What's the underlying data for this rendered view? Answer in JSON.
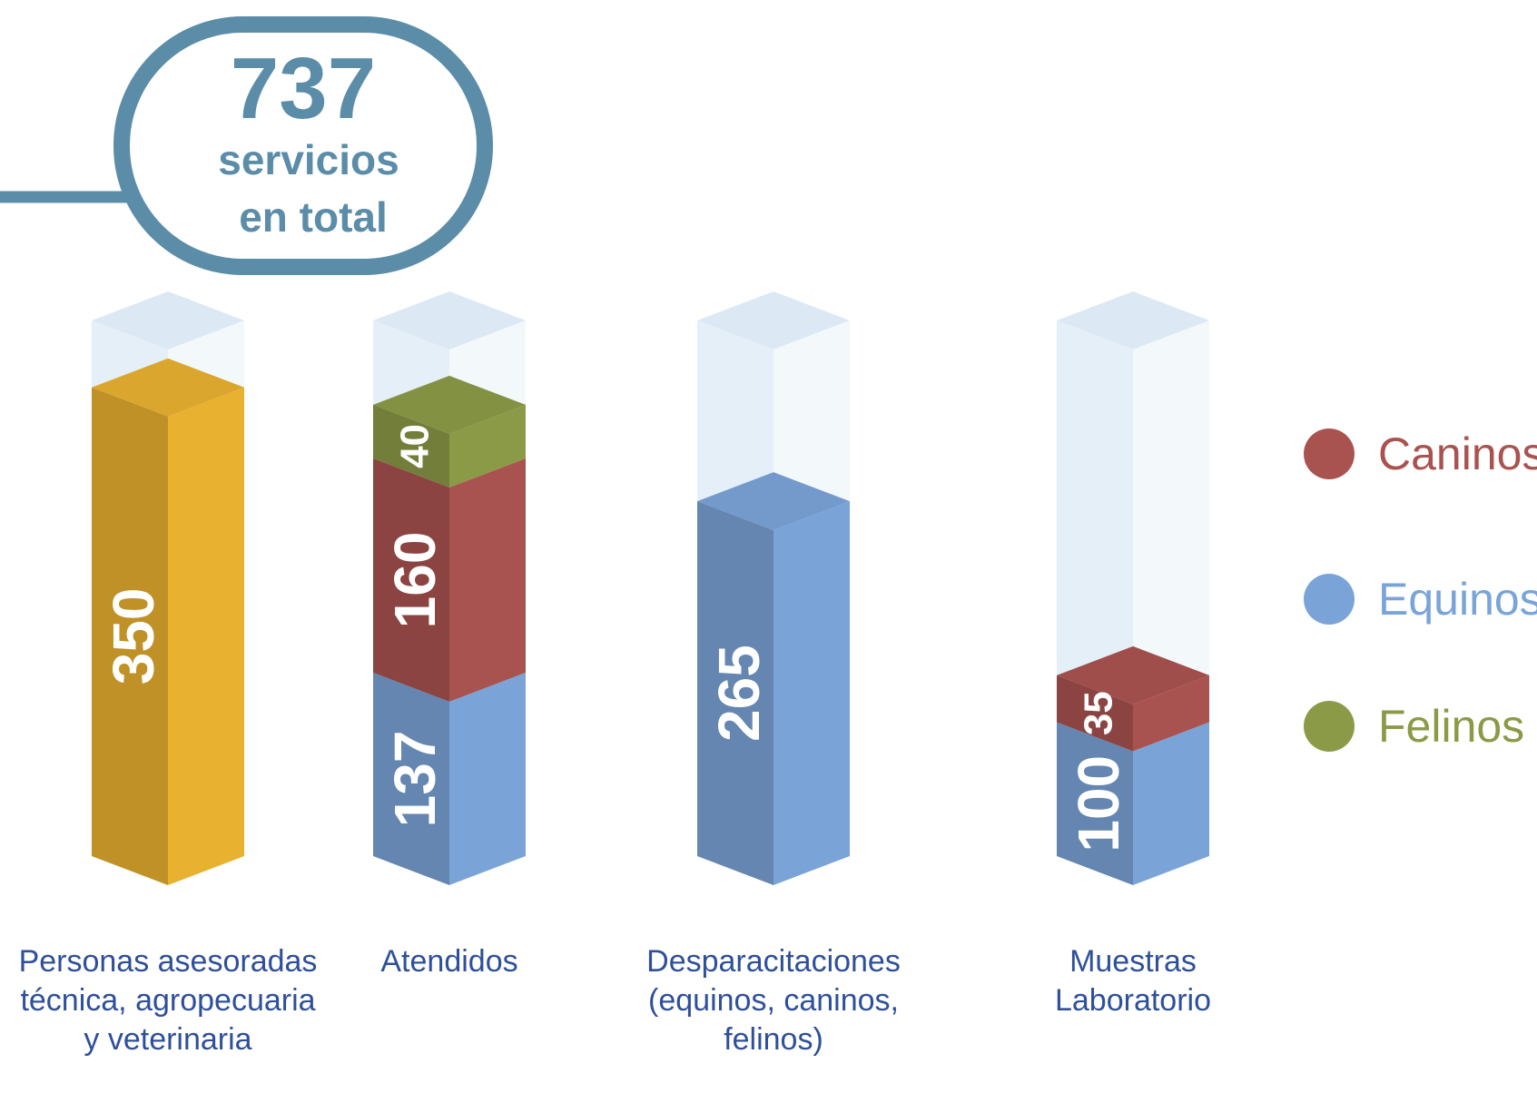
{
  "total_badge": {
    "number": "737",
    "line1": "servicios",
    "line2": "en total",
    "color": "#5b8ca8"
  },
  "colors": {
    "personas": "#e9b130",
    "caninos": "#a95350",
    "equinos": "#7aa4d8",
    "felinos": "#8b9a46",
    "ghost": "#dce9f5",
    "category_text": "#2e4f9a"
  },
  "chart_data": {
    "type": "bar",
    "stacked": true,
    "categories": [
      "Personas asesoradas técnica, agropecuaria y veterinaria",
      "Atendidos",
      "Desparacitaciones (equinos, caninos, felinos)",
      "Muestras Laboratorio"
    ],
    "category_lines": [
      [
        "Personas asesoradas",
        "técnica, agropecuaria",
        "y veterinaria"
      ],
      [
        "Atendidos"
      ],
      [
        "Desparacitaciones",
        "(equinos, caninos,",
        "felinos)"
      ],
      [
        "Muestras",
        "Laboratorio"
      ]
    ],
    "series": [
      {
        "name": "",
        "key": "personas",
        "values": [
          350,
          null,
          null,
          null
        ]
      },
      {
        "name": "Equinos",
        "key": "equinos",
        "values": [
          null,
          137,
          265,
          100
        ]
      },
      {
        "name": "Caninos",
        "key": "caninos",
        "values": [
          null,
          160,
          null,
          35
        ]
      },
      {
        "name": "Felinos",
        "key": "felinos",
        "values": [
          null,
          40,
          null,
          null
        ]
      }
    ],
    "legend": [
      "Caninos",
      "Equinos",
      "Felinos"
    ],
    "legend_position": "right",
    "ylim": [
      0,
      400
    ],
    "grid": false
  }
}
